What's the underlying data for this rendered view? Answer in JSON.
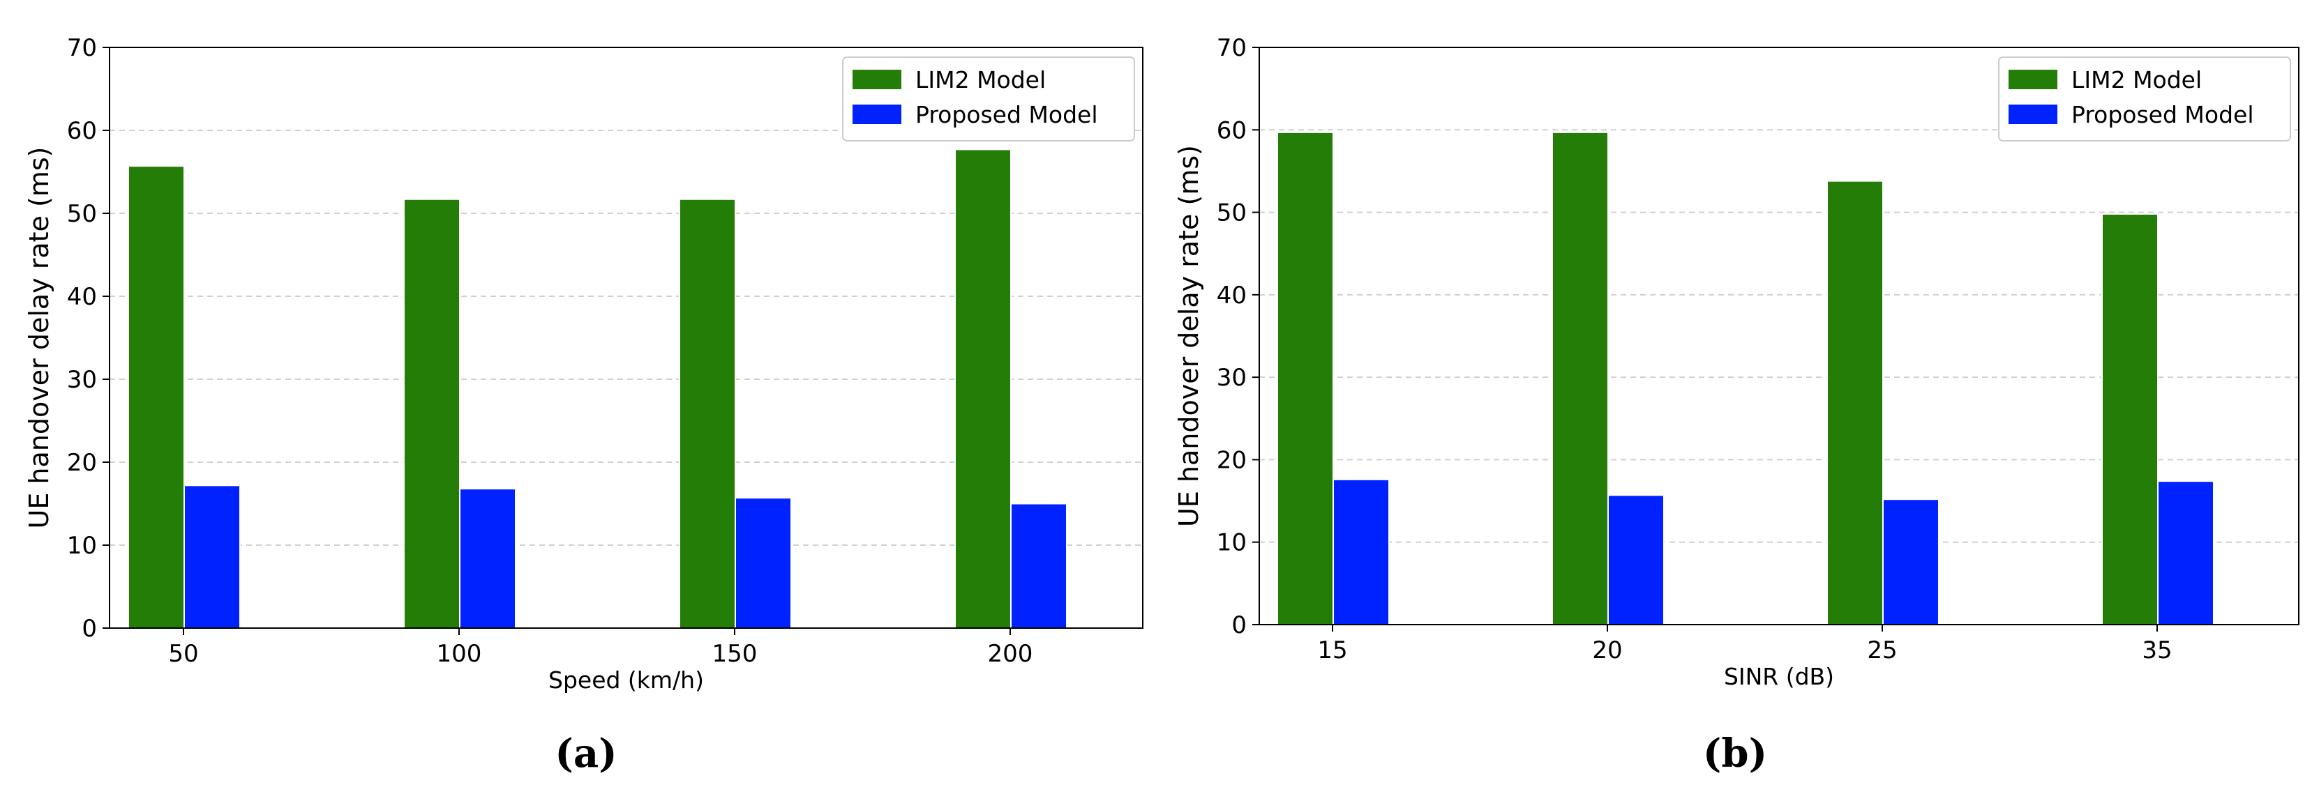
{
  "colors": {
    "lim2": "#237D07",
    "proposed": "#0022FF",
    "grid": "#d0d0d0",
    "axis": "#000000"
  },
  "chart_data": [
    {
      "type": "bar",
      "panel_label": "(a)",
      "title": "",
      "xlabel": "Speed (km/h)",
      "ylabel": "UE handover delay rate (ms)",
      "categories": [
        "50",
        "100",
        "150",
        "200"
      ],
      "ylim": [
        0,
        70
      ],
      "yticks": [
        "0",
        "10",
        "20",
        "30",
        "40",
        "50",
        "60",
        "70"
      ],
      "grid": "y-dashed",
      "legend_position": "top-right",
      "series": [
        {
          "name": "LIM2 Model",
          "values": [
            55.7,
            51.7,
            51.7,
            57.7
          ]
        },
        {
          "name": "Proposed Model",
          "values": [
            17.2,
            16.8,
            15.7,
            15.0
          ]
        }
      ]
    },
    {
      "type": "bar",
      "panel_label": "(b)",
      "title": "",
      "xlabel": "SINR (dB)",
      "ylabel": "UE handover delay rate (ms)",
      "categories": [
        "15",
        "20",
        "25",
        "35"
      ],
      "ylim": [
        0,
        70
      ],
      "yticks": [
        "0",
        "10",
        "20",
        "30",
        "40",
        "50",
        "60",
        "70"
      ],
      "grid": "y-dashed",
      "legend_position": "top-right",
      "series": [
        {
          "name": "LIM2 Model",
          "values": [
            59.7,
            59.7,
            53.8,
            49.8
          ]
        },
        {
          "name": "Proposed Model",
          "values": [
            17.6,
            15.7,
            15.2,
            17.4
          ]
        }
      ]
    }
  ]
}
